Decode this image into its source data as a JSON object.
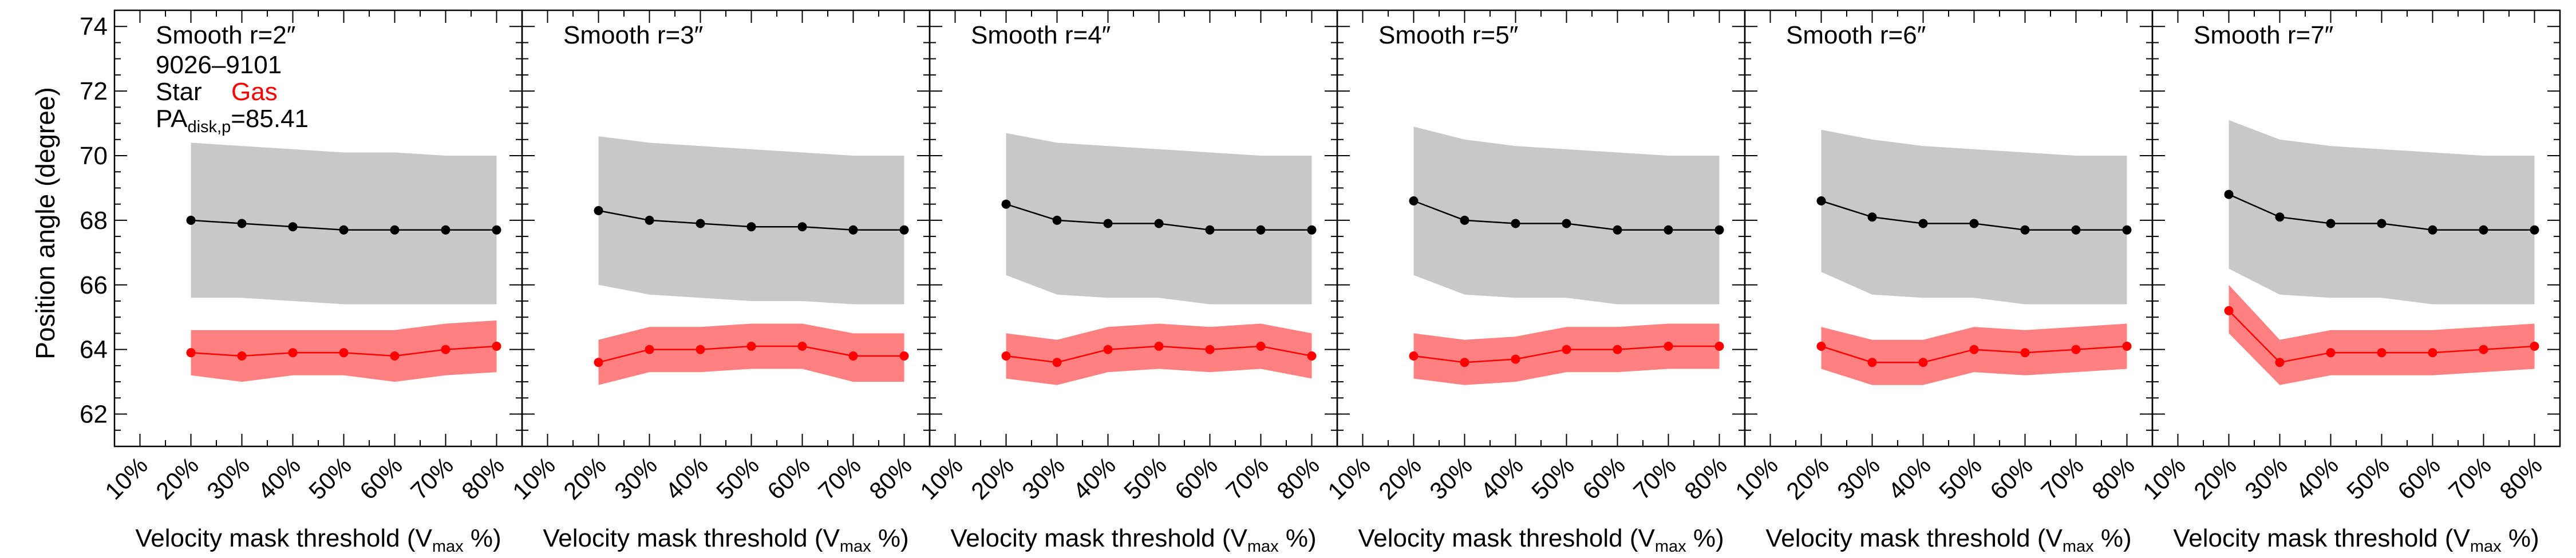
{
  "figure": {
    "ylabel": "Position angle (degree)",
    "xlabel_prefix": "Velocity mask threshold (V",
    "xlabel_sub": "max",
    "xlabel_suffix": " %)",
    "legend": {
      "galaxy_id": "9026–9101",
      "star_label": "Star",
      "gas_label": "Gas",
      "pa_prefix": "PA",
      "pa_sub": "disk,p",
      "pa_value": "=85.41"
    }
  },
  "chart_data": [
    {
      "type": "line",
      "title": "Smooth r=2″",
      "x_ticks": [
        "10%",
        "20%",
        "30%",
        "40%",
        "50%",
        "60%",
        "70%",
        "80%"
      ],
      "x": [
        20,
        30,
        40,
        50,
        60,
        70,
        80
      ],
      "xlim": [
        5,
        85
      ],
      "ylim": [
        61,
        74.5
      ],
      "y_ticks": [
        62,
        64,
        66,
        68,
        70,
        72,
        74
      ],
      "series": [
        {
          "name": "Star",
          "color": "#000000",
          "band_color": "#c8c8c8",
          "values": [
            68.0,
            67.9,
            67.8,
            67.7,
            67.7,
            67.7,
            67.7
          ],
          "upper": [
            70.4,
            70.3,
            70.2,
            70.1,
            70.1,
            70.0,
            70.0
          ],
          "lower": [
            65.6,
            65.6,
            65.5,
            65.4,
            65.4,
            65.4,
            65.4
          ]
        },
        {
          "name": "Gas",
          "color": "#ff0000",
          "band_color": "#ff8080",
          "values": [
            63.9,
            63.8,
            63.9,
            63.9,
            63.8,
            64.0,
            64.1
          ],
          "upper": [
            64.6,
            64.6,
            64.6,
            64.6,
            64.6,
            64.8,
            64.9
          ],
          "lower": [
            63.2,
            63.0,
            63.2,
            63.2,
            63.0,
            63.2,
            63.3
          ]
        }
      ]
    },
    {
      "type": "line",
      "title": "Smooth r=3″",
      "x_ticks": [
        "10%",
        "20%",
        "30%",
        "40%",
        "50%",
        "60%",
        "70%",
        "80%"
      ],
      "x": [
        20,
        30,
        40,
        50,
        60,
        70,
        80
      ],
      "xlim": [
        5,
        85
      ],
      "ylim": [
        61,
        74.5
      ],
      "y_ticks": [
        62,
        64,
        66,
        68,
        70,
        72,
        74
      ],
      "series": [
        {
          "name": "Star",
          "color": "#000000",
          "band_color": "#c8c8c8",
          "values": [
            68.3,
            68.0,
            67.9,
            67.8,
            67.8,
            67.7,
            67.7
          ],
          "upper": [
            70.6,
            70.4,
            70.3,
            70.2,
            70.1,
            70.0,
            70.0
          ],
          "lower": [
            66.0,
            65.7,
            65.6,
            65.5,
            65.5,
            65.4,
            65.4
          ]
        },
        {
          "name": "Gas",
          "color": "#ff0000",
          "band_color": "#ff8080",
          "values": [
            63.6,
            64.0,
            64.0,
            64.1,
            64.1,
            63.8,
            63.8
          ],
          "upper": [
            64.3,
            64.7,
            64.7,
            64.8,
            64.8,
            64.5,
            64.5
          ],
          "lower": [
            62.9,
            63.3,
            63.3,
            63.4,
            63.4,
            63.0,
            63.0
          ]
        }
      ]
    },
    {
      "type": "line",
      "title": "Smooth r=4″",
      "x_ticks": [
        "10%",
        "20%",
        "30%",
        "40%",
        "50%",
        "60%",
        "70%",
        "80%"
      ],
      "x": [
        20,
        30,
        40,
        50,
        60,
        70,
        80
      ],
      "xlim": [
        5,
        85
      ],
      "ylim": [
        61,
        74.5
      ],
      "y_ticks": [
        62,
        64,
        66,
        68,
        70,
        72,
        74
      ],
      "series": [
        {
          "name": "Star",
          "color": "#000000",
          "band_color": "#c8c8c8",
          "values": [
            68.5,
            68.0,
            67.9,
            67.9,
            67.7,
            67.7,
            67.7
          ],
          "upper": [
            70.7,
            70.4,
            70.3,
            70.2,
            70.1,
            70.0,
            70.0
          ],
          "lower": [
            66.3,
            65.7,
            65.6,
            65.6,
            65.4,
            65.4,
            65.4
          ]
        },
        {
          "name": "Gas",
          "color": "#ff0000",
          "band_color": "#ff8080",
          "values": [
            63.8,
            63.6,
            64.0,
            64.1,
            64.0,
            64.1,
            63.8
          ],
          "upper": [
            64.5,
            64.3,
            64.7,
            64.8,
            64.7,
            64.8,
            64.5
          ],
          "lower": [
            63.1,
            62.9,
            63.3,
            63.4,
            63.3,
            63.4,
            63.1
          ]
        }
      ]
    },
    {
      "type": "line",
      "title": "Smooth r=5″",
      "x_ticks": [
        "10%",
        "20%",
        "30%",
        "40%",
        "50%",
        "60%",
        "70%",
        "80%"
      ],
      "x": [
        20,
        30,
        40,
        50,
        60,
        70,
        80
      ],
      "xlim": [
        5,
        85
      ],
      "ylim": [
        61,
        74.5
      ],
      "y_ticks": [
        62,
        64,
        66,
        68,
        70,
        72,
        74
      ],
      "series": [
        {
          "name": "Star",
          "color": "#000000",
          "band_color": "#c8c8c8",
          "values": [
            68.6,
            68.0,
            67.9,
            67.9,
            67.7,
            67.7,
            67.7
          ],
          "upper": [
            70.9,
            70.5,
            70.3,
            70.2,
            70.1,
            70.0,
            70.0
          ],
          "lower": [
            66.3,
            65.7,
            65.6,
            65.6,
            65.4,
            65.4,
            65.4
          ]
        },
        {
          "name": "Gas",
          "color": "#ff0000",
          "band_color": "#ff8080",
          "values": [
            63.8,
            63.6,
            63.7,
            64.0,
            64.0,
            64.1,
            64.1
          ],
          "upper": [
            64.5,
            64.3,
            64.4,
            64.7,
            64.7,
            64.8,
            64.8
          ],
          "lower": [
            63.1,
            62.9,
            63.0,
            63.3,
            63.3,
            63.4,
            63.4
          ]
        }
      ]
    },
    {
      "type": "line",
      "title": "Smooth r=6″",
      "x_ticks": [
        "10%",
        "20%",
        "30%",
        "40%",
        "50%",
        "60%",
        "70%",
        "80%"
      ],
      "x": [
        20,
        30,
        40,
        50,
        60,
        70,
        80
      ],
      "xlim": [
        5,
        85
      ],
      "ylim": [
        61,
        74.5
      ],
      "y_ticks": [
        62,
        64,
        66,
        68,
        70,
        72,
        74
      ],
      "series": [
        {
          "name": "Star",
          "color": "#000000",
          "band_color": "#c8c8c8",
          "values": [
            68.6,
            68.1,
            67.9,
            67.9,
            67.7,
            67.7,
            67.7
          ],
          "upper": [
            70.8,
            70.5,
            70.3,
            70.2,
            70.1,
            70.0,
            70.0
          ],
          "lower": [
            66.4,
            65.7,
            65.6,
            65.6,
            65.4,
            65.4,
            65.4
          ]
        },
        {
          "name": "Gas",
          "color": "#ff0000",
          "band_color": "#ff8080",
          "values": [
            64.1,
            63.6,
            63.6,
            64.0,
            63.9,
            64.0,
            64.1
          ],
          "upper": [
            64.7,
            64.3,
            64.3,
            64.7,
            64.6,
            64.7,
            64.8
          ],
          "lower": [
            63.4,
            62.9,
            62.9,
            63.3,
            63.2,
            63.3,
            63.4
          ]
        }
      ]
    },
    {
      "type": "line",
      "title": "Smooth r=7″",
      "x_ticks": [
        "10%",
        "20%",
        "30%",
        "40%",
        "50%",
        "60%",
        "70%",
        "80%"
      ],
      "x": [
        20,
        30,
        40,
        50,
        60,
        70,
        80
      ],
      "xlim": [
        5,
        85
      ],
      "ylim": [
        61,
        74.5
      ],
      "y_ticks": [
        62,
        64,
        66,
        68,
        70,
        72,
        74
      ],
      "series": [
        {
          "name": "Star",
          "color": "#000000",
          "band_color": "#c8c8c8",
          "values": [
            68.8,
            68.1,
            67.9,
            67.9,
            67.7,
            67.7,
            67.7
          ],
          "upper": [
            71.1,
            70.5,
            70.3,
            70.2,
            70.1,
            70.0,
            70.0
          ],
          "lower": [
            66.5,
            65.7,
            65.6,
            65.6,
            65.4,
            65.4,
            65.4
          ]
        },
        {
          "name": "Gas",
          "color": "#ff0000",
          "band_color": "#ff8080",
          "values": [
            65.2,
            63.6,
            63.9,
            63.9,
            63.9,
            64.0,
            64.1
          ],
          "upper": [
            66.0,
            64.3,
            64.6,
            64.6,
            64.6,
            64.7,
            64.8
          ],
          "lower": [
            64.5,
            62.9,
            63.2,
            63.2,
            63.2,
            63.3,
            63.4
          ]
        }
      ]
    }
  ]
}
